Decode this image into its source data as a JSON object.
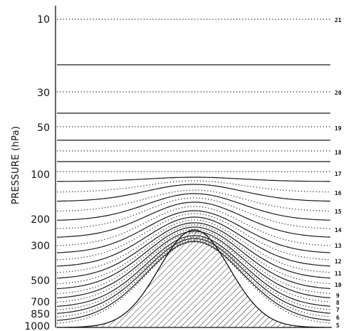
{
  "y_axis_label": "PRESSURE (hPa)",
  "pressure_ticks": [
    "10",
    "30",
    "50",
    "100",
    "200",
    "300",
    "500",
    "700",
    "850",
    "1000"
  ],
  "level_labels": [
    "21",
    "20",
    "19",
    "18",
    "17",
    "16",
    "15",
    "14",
    "13",
    "12",
    "11",
    "10",
    "9",
    "8",
    "7",
    "6",
    "5"
  ]
}
